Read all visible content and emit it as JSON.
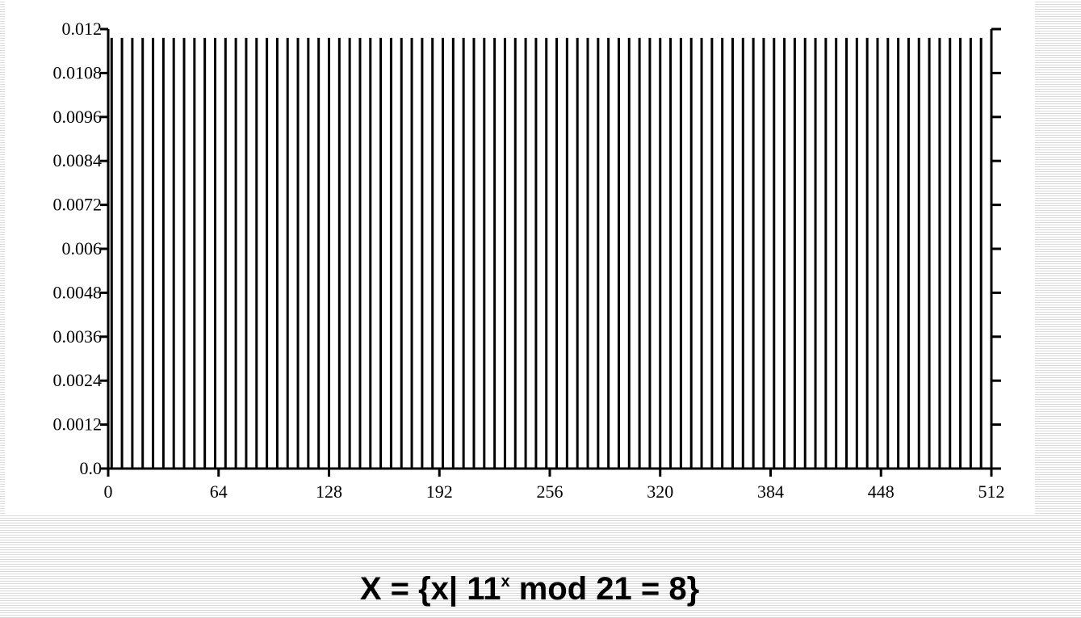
{
  "chart_data": {
    "type": "bar",
    "title": "",
    "xlabel": "",
    "ylabel": "",
    "xlim": [
      0,
      512
    ],
    "ylim": [
      0,
      0.012
    ],
    "x_ticks": [
      "0",
      "64",
      "128",
      "192",
      "256",
      "320",
      "384",
      "448",
      "512"
    ],
    "y_ticks": [
      "0.0",
      "0.0012",
      "0.0024",
      "0.0036",
      "0.0048",
      "0.006",
      "0.0072",
      "0.0084",
      "0.0096",
      "0.0108",
      "0.012"
    ],
    "series": [
      {
        "x_start": 2,
        "x_step": 6,
        "count": 85,
        "value": 0.01176
      }
    ],
    "grid": false
  },
  "caption": {
    "prefix": "X = {x| 11",
    "superscript": "x",
    "suffix": " mod 21 = 8}"
  },
  "colors": {
    "bar": "#000000",
    "stripe": "#d9d9d9",
    "background": "#ffffff"
  }
}
